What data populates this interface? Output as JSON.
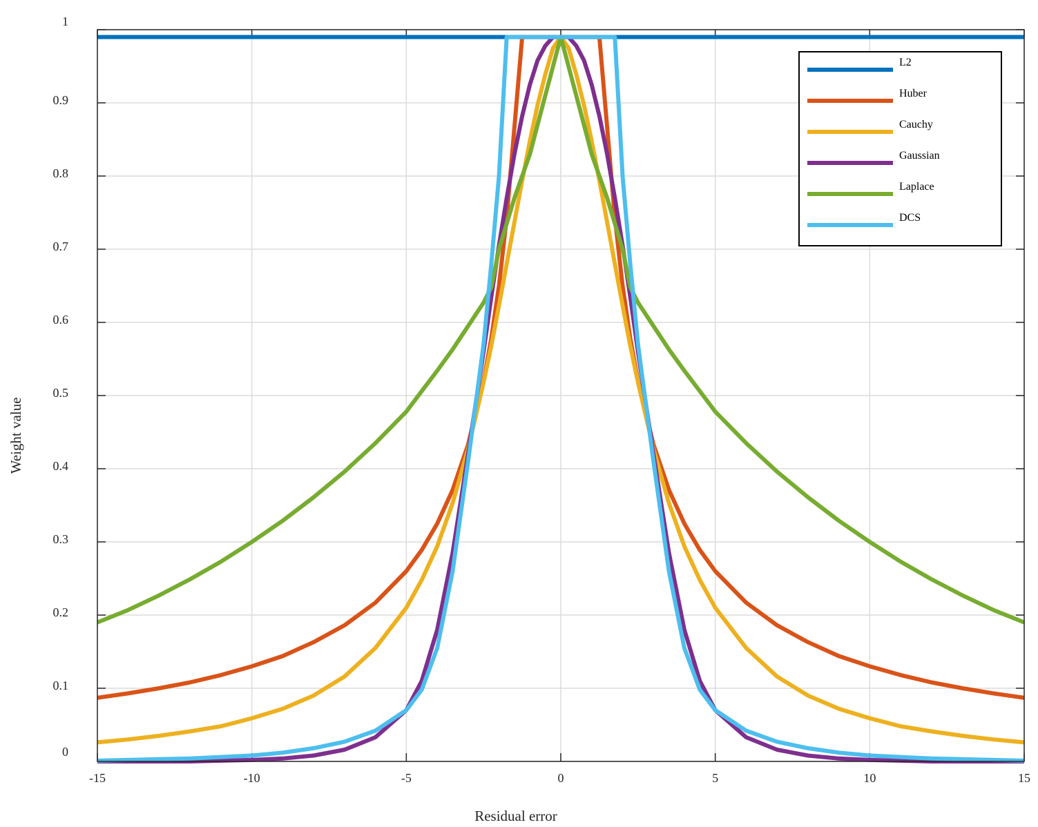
{
  "chart_data": {
    "type": "line",
    "title": "",
    "xlabel": "Residual error",
    "ylabel": "Weight value",
    "xlim": [
      -15,
      15
    ],
    "ylim": [
      0,
      1
    ],
    "grid": true,
    "legend_position": "top-right",
    "x_ticks": [
      -15,
      -10,
      -5,
      0,
      5,
      10,
      15
    ],
    "x_tick_labels": [
      "-15",
      "-10",
      "-5",
      "0",
      "5",
      "10",
      "15"
    ],
    "y_ticks": [
      0,
      0.1,
      0.2,
      0.3,
      0.4,
      0.5,
      0.6,
      0.7,
      0.8,
      0.9,
      1
    ],
    "y_tick_labels": [
      "0",
      "0.1",
      "0.2",
      "0.3",
      "0.4",
      "0.5",
      "0.6",
      "0.7",
      "0.8",
      "0.9",
      "1"
    ],
    "x": [
      -15,
      -14,
      -13,
      -12,
      -11,
      -10,
      -9,
      -8,
      -7,
      -6,
      -5,
      -4.5,
      -4,
      -3.5,
      -3,
      -2.5,
      -2.25,
      -2,
      -1.75,
      -1.5,
      -1.25,
      -1,
      -0.75,
      -0.5,
      -0.25,
      0,
      0.25,
      0.5,
      0.75,
      1,
      1.25,
      1.5,
      1.75,
      2,
      2.25,
      2.5,
      3,
      3.5,
      4,
      4.5,
      5,
      6,
      7,
      8,
      9,
      10,
      11,
      12,
      13,
      14,
      15
    ],
    "series": [
      {
        "name": "L2",
        "color": "#0072BD",
        "values": [
          0.99,
          0.99,
          0.99,
          0.99,
          0.99,
          0.99,
          0.99,
          0.99,
          0.99,
          0.99,
          0.99,
          0.99,
          0.99,
          0.99,
          0.99,
          0.99,
          0.99,
          0.99,
          0.99,
          0.99,
          0.99,
          0.99,
          0.99,
          0.99,
          0.99,
          0.99,
          0.99,
          0.99,
          0.99,
          0.99,
          0.99,
          0.99,
          0.99,
          0.99,
          0.99,
          0.99,
          0.99,
          0.99,
          0.99,
          0.99,
          0.99,
          0.99,
          0.99,
          0.99,
          0.99,
          0.99,
          0.99,
          0.99,
          0.99,
          0.99,
          0.99
        ]
      },
      {
        "name": "Huber",
        "color": "#D95319",
        "values": [
          0.087,
          0.093,
          0.1,
          0.108,
          0.118,
          0.13,
          0.144,
          0.163,
          0.186,
          0.217,
          0.26,
          0.289,
          0.325,
          0.371,
          0.433,
          0.52,
          0.578,
          0.65,
          0.743,
          0.867,
          0.99,
          0.99,
          0.99,
          0.99,
          0.99,
          0.99,
          0.99,
          0.99,
          0.99,
          0.99,
          0.99,
          0.867,
          0.743,
          0.65,
          0.578,
          0.52,
          0.433,
          0.371,
          0.325,
          0.289,
          0.26,
          0.217,
          0.186,
          0.163,
          0.144,
          0.13,
          0.118,
          0.108,
          0.1,
          0.093,
          0.087
        ]
      },
      {
        "name": "Cauchy",
        "color": "#EDB120",
        "values": [
          0.026,
          0.03,
          0.035,
          0.041,
          0.048,
          0.059,
          0.072,
          0.09,
          0.116,
          0.155,
          0.21,
          0.248,
          0.294,
          0.353,
          0.427,
          0.518,
          0.568,
          0.623,
          0.68,
          0.737,
          0.794,
          0.848,
          0.897,
          0.939,
          0.975,
          0.99,
          0.975,
          0.939,
          0.897,
          0.848,
          0.794,
          0.737,
          0.68,
          0.623,
          0.568,
          0.518,
          0.427,
          0.353,
          0.294,
          0.248,
          0.21,
          0.155,
          0.116,
          0.09,
          0.072,
          0.059,
          0.048,
          0.041,
          0.035,
          0.03,
          0.026
        ]
      },
      {
        "name": "Gaussian",
        "color": "#7E2F8E",
        "values": [
          0.0,
          0.0,
          0.0,
          0.0,
          0.001,
          0.002,
          0.004,
          0.008,
          0.016,
          0.033,
          0.07,
          0.11,
          0.18,
          0.285,
          0.42,
          0.56,
          0.635,
          0.705,
          0.77,
          0.83,
          0.882,
          0.925,
          0.958,
          0.978,
          0.99,
          0.99,
          0.99,
          0.978,
          0.958,
          0.925,
          0.882,
          0.83,
          0.77,
          0.705,
          0.635,
          0.56,
          0.42,
          0.285,
          0.18,
          0.11,
          0.07,
          0.033,
          0.016,
          0.008,
          0.004,
          0.002,
          0.001,
          0.0,
          0.0,
          0.0,
          0.0
        ]
      },
      {
        "name": "Laplace",
        "color": "#77AC30",
        "values": [
          0.19,
          0.207,
          0.227,
          0.249,
          0.273,
          0.3,
          0.329,
          0.361,
          0.396,
          0.435,
          0.478,
          0.506,
          0.534,
          0.563,
          0.595,
          0.627,
          0.648,
          0.7,
          0.735,
          0.77,
          0.8,
          0.83,
          0.87,
          0.91,
          0.95,
          0.99,
          0.95,
          0.91,
          0.87,
          0.83,
          0.8,
          0.77,
          0.735,
          0.7,
          0.648,
          0.627,
          0.595,
          0.563,
          0.534,
          0.506,
          0.478,
          0.435,
          0.396,
          0.361,
          0.329,
          0.3,
          0.273,
          0.249,
          0.227,
          0.207,
          0.19
        ]
      },
      {
        "name": "DCS",
        "color": "#4DBEEE",
        "values": [
          0.001,
          0.002,
          0.003,
          0.004,
          0.006,
          0.008,
          0.012,
          0.018,
          0.027,
          0.042,
          0.07,
          0.098,
          0.155,
          0.26,
          0.41,
          0.57,
          0.68,
          0.8,
          0.99,
          0.99,
          0.99,
          0.99,
          0.99,
          0.99,
          0.99,
          0.99,
          0.99,
          0.99,
          0.99,
          0.99,
          0.99,
          0.99,
          0.99,
          0.8,
          0.68,
          0.57,
          0.41,
          0.26,
          0.155,
          0.098,
          0.07,
          0.042,
          0.027,
          0.018,
          0.012,
          0.008,
          0.006,
          0.004,
          0.003,
          0.002,
          0.001
        ]
      }
    ]
  }
}
